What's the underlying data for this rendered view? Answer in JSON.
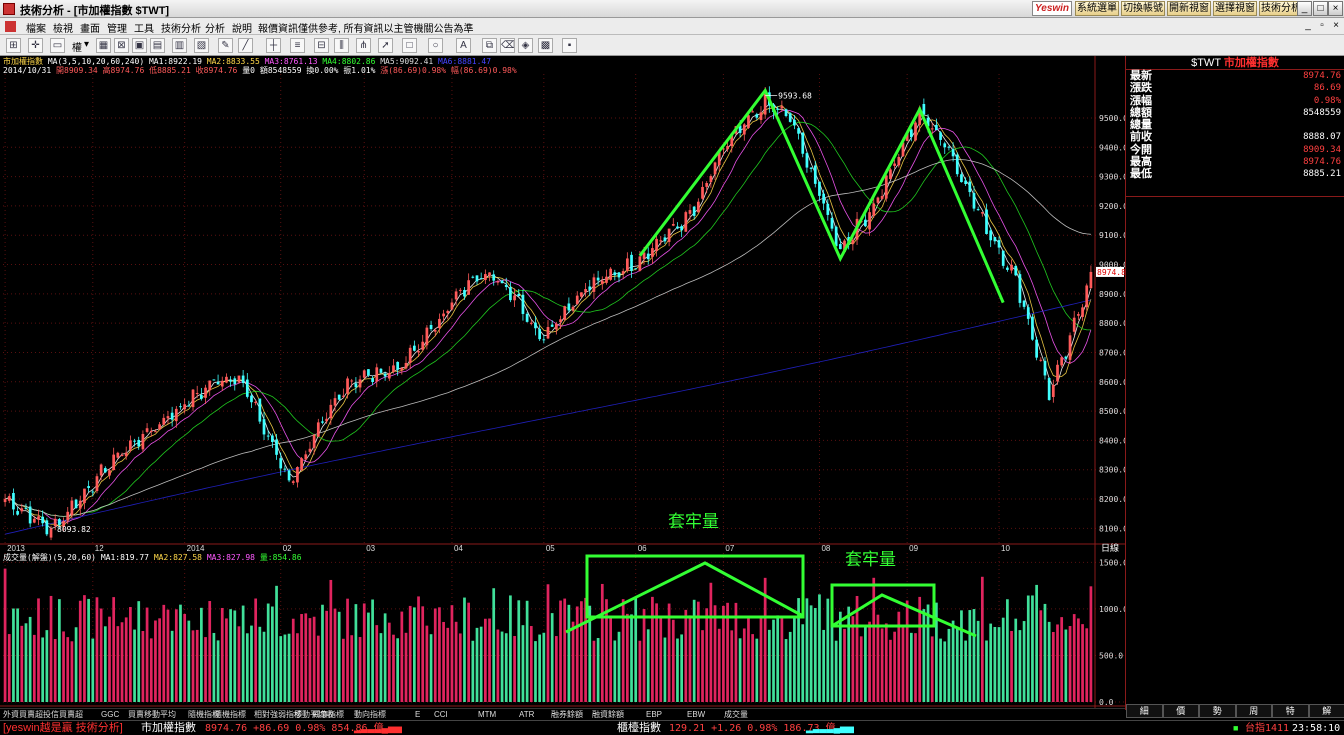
{
  "window": {
    "title": "技術分析 - [市加權指數 $TWT]",
    "brand": "Yeswin",
    "top_buttons": [
      "系統選單",
      "切換帳號",
      "開新視窗",
      "選擇視窗",
      "技術分析"
    ],
    "controls": [
      "_",
      "□",
      "×"
    ]
  },
  "menu": {
    "items": [
      "檔案",
      "檢視",
      "畫面",
      "管理",
      "工具",
      "技術分析",
      "分析",
      "說明",
      "報價資訊僅供參考, 所有資訊以主管機關公告為準"
    ]
  },
  "toolbar": {
    "weight_label": "權"
  },
  "price_header": {
    "symbol": "市加權指數",
    "ma_label": "MA(3,5,10,20,60,240)",
    "ma1": "MA1:8922.19",
    "ma2": "MA2:8833.55",
    "ma3": "MA3:8761.13",
    "ma4": "MA4:8802.86",
    "ma5": "MA5:9092.41",
    "ma6": "MA6:8881.47",
    "date": "2014/10/31",
    "open": "開8909.34",
    "high": "高8974.76",
    "low": "低8885.21",
    "close": "收8974.76",
    "volume": "量0",
    "amount": "額8548559",
    "turnover": "換0.00%",
    "amplitude": "振1.01%",
    "change": "漲(86.69)0.98%",
    "change2": "幅(86.69)0.98%"
  },
  "volume_header": {
    "label": "成交量(解盤)(5,20,60)",
    "ma1": "MA1:819.77",
    "ma2": "MA2:827.58",
    "ma3": "MA3:827.98",
    "vol": "量:854.86"
  },
  "annotations": {
    "peak_label": "9593.68",
    "low_label": "8093.82",
    "last_price_tag": "8974.8",
    "trap_text_1": "套牢量",
    "trap_text_2": "套牢量",
    "axis_right_label": "日線"
  },
  "x_axis_labels": [
    "2013",
    "12",
    "2014",
    "02",
    "03",
    "04",
    "05",
    "06",
    "07",
    "08",
    "09",
    "10"
  ],
  "price_axis_labels": [
    "9500.0",
    "9400.0",
    "9300.0",
    "9200.0",
    "9100.0",
    "9000.0",
    "8900.0",
    "8800.0",
    "8700.0",
    "8600.0",
    "8500.0",
    "8400.0",
    "8300.0",
    "8200.0",
    "8100.0"
  ],
  "volume_axis_labels": [
    "1500.0",
    "1000.0",
    "500.0",
    "0.0"
  ],
  "quote_panel": {
    "code": "$TWT",
    "name": "市加權指數",
    "rows": [
      {
        "label": "最新",
        "value": "8974.76",
        "color": "#ff4040"
      },
      {
        "label": "漲跌",
        "value": "86.69",
        "color": "#ff4040"
      },
      {
        "label": "漲幅",
        "value": "0.98%",
        "color": "#ff4040"
      },
      {
        "label": "總額",
        "value": "8548559",
        "color": "#ffffff"
      },
      {
        "label": "總量",
        "value": "",
        "color": "#ffffff"
      },
      {
        "label": "前收",
        "value": "8888.07",
        "color": "#ffffff"
      },
      {
        "label": "今開",
        "value": "8909.34",
        "color": "#ff4040"
      },
      {
        "label": "最高",
        "value": "8974.76",
        "color": "#ff4040"
      },
      {
        "label": "最低",
        "value": "8885.21",
        "color": "#ffffff"
      }
    ],
    "tabs": [
      "細",
      "價",
      "勢",
      "周",
      "特",
      "解"
    ]
  },
  "indicator_tabs": [
    "外資買賣超",
    "投信買賣超",
    "GGC",
    "買賣移動平均",
    "隨機指標",
    "隨機指標",
    "相對強弱指標",
    "移動平均收",
    "威廉指標",
    "動向指標",
    "E",
    "CCI",
    "MTM",
    "ATR",
    "融券餘額",
    "融資餘額",
    "EBP",
    "EBW",
    "成交量"
  ],
  "status_bar": {
    "app": "[yeswin越是贏 技術分析]",
    "index_name": "市加權指數",
    "index_quote": "8974.76 +86.69 0.98% 854.86 億",
    "otc_name": "櫃檯指數",
    "otc_quote": "129.21 +1.26 0.98% 186.73 億",
    "market_label": "台指1411",
    "clock": "23:58:10"
  },
  "colors": {
    "up": "#ff5a5a",
    "down": "#40ffff",
    "vol_up": "#e0245e",
    "vol_down": "#40e09a",
    "annotation": "#33ff33",
    "ma240": "#2222cc"
  },
  "chart_data": {
    "type": "candlestick",
    "period": "daily",
    "range": "2013-11 to 2014-10-31",
    "price_ylim": [
      8050,
      9650
    ],
    "volume_ylim": [
      0,
      1600
    ],
    "pattern_polyline": [
      [
        "2014-06-03",
        9030
      ],
      [
        "2014-07-15",
        9593.68
      ],
      [
        "2014-08-08",
        9020
      ],
      [
        "2014-09-04",
        9530
      ],
      [
        "2014-10-02",
        8870
      ]
    ],
    "price_keypoints": [
      [
        "2013-11-01",
        8200
      ],
      [
        "2013-11-18",
        8093.82
      ],
      [
        "2013-12-10",
        8350
      ],
      [
        "2014-01-10",
        8600
      ],
      [
        "2014-01-20",
        8620
      ],
      [
        "2014-02-05",
        8260
      ],
      [
        "2014-02-25",
        8600
      ],
      [
        "2014-03-15",
        8650
      ],
      [
        "2014-04-01",
        8870
      ],
      [
        "2014-04-10",
        8980
      ],
      [
        "2014-04-22",
        8900
      ],
      [
        "2014-04-30",
        8750
      ],
      [
        "2014-05-15",
        8920
      ],
      [
        "2014-05-30",
        9000
      ],
      [
        "2014-06-20",
        9180
      ],
      [
        "2014-07-01",
        9400
      ],
      [
        "2014-07-15",
        9550
      ],
      [
        "2014-07-23",
        9500
      ],
      [
        "2014-08-08",
        9050
      ],
      [
        "2014-08-20",
        9200
      ],
      [
        "2014-09-04",
        9520
      ],
      [
        "2014-09-12",
        9420
      ],
      [
        "2014-09-25",
        9150
      ],
      [
        "2014-10-07",
        8950
      ],
      [
        "2014-10-17",
        8560
      ],
      [
        "2014-10-23",
        8700
      ],
      [
        "2014-10-31",
        8974.76
      ]
    ]
  }
}
